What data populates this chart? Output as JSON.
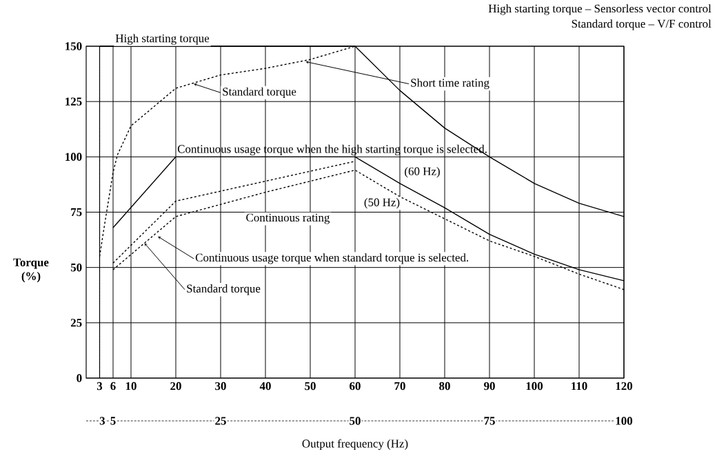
{
  "chart_data": {
    "type": "line",
    "xlabel": "Output frequency (Hz)",
    "ylabel": "Torque (%)",
    "xlim": [
      0,
      120
    ],
    "xticks": [
      3,
      6,
      10,
      20,
      30,
      40,
      50,
      60,
      70,
      80,
      90,
      100,
      110,
      120
    ],
    "ylim": [
      0,
      150
    ],
    "yticks": [
      0,
      25,
      50,
      75,
      100,
      125,
      150
    ],
    "x2lim": [
      0,
      100
    ],
    "x2ticks": [
      3,
      5,
      25,
      50,
      75,
      100
    ],
    "grid": true,
    "series": [
      {
        "color": "#000000",
        "line_style": "solid",
        "x": [
          3,
          60,
          70,
          80,
          90,
          100,
          110,
          120
        ],
        "values": [
          150,
          150,
          130,
          113,
          100,
          88,
          79,
          73
        ]
      },
      {
        "color": "#000000",
        "line_style": "solid",
        "x": [
          6,
          20,
          60,
          70,
          80,
          90,
          100,
          110,
          120
        ],
        "values": [
          68,
          100,
          100,
          88,
          77,
          65,
          56,
          49,
          44
        ]
      },
      {
        "color": "#000000",
        "line_style": "dashed",
        "x": [
          3,
          4,
          6,
          7,
          10,
          20,
          30,
          40,
          50,
          60
        ],
        "values": [
          55,
          68,
          93,
          101,
          114,
          131,
          137,
          140,
          144,
          150
        ]
      },
      {
        "color": "#000000",
        "line_style": "dashed",
        "x": [
          6,
          20,
          40,
          60
        ],
        "values": [
          52,
          80,
          89,
          98
        ]
      },
      {
        "color": "#000000",
        "line_style": "dashed",
        "x": [
          6,
          20,
          40,
          60,
          70,
          80,
          90,
          100,
          110,
          120
        ],
        "values": [
          49,
          73,
          84,
          94,
          82,
          72,
          62,
          55,
          47,
          40
        ]
      },
      {
        "color": "#000000",
        "line_style": "dotted",
        "x": [
          3,
          3
        ],
        "values": [
          0,
          150
        ]
      }
    ],
    "annotations": [
      "High starting torque – Sensorless vector control",
      "Standard torque – V/F control",
      "High starting torque",
      {
        "text": "Short time rating",
        "x": 49,
        "y": 143
      },
      {
        "text": "Standard torque",
        "x": 24,
        "y": 133
      },
      "Continuous usage torque when the high starting torque is selected.",
      "(60 Hz)",
      "(50 Hz)",
      "Continuous rating",
      {
        "text": "Continuous usage torque when standard torque is selected.",
        "x": 16,
        "y": 64
      },
      {
        "text": "Standard torque",
        "x": 13,
        "y": 61
      }
    ]
  }
}
